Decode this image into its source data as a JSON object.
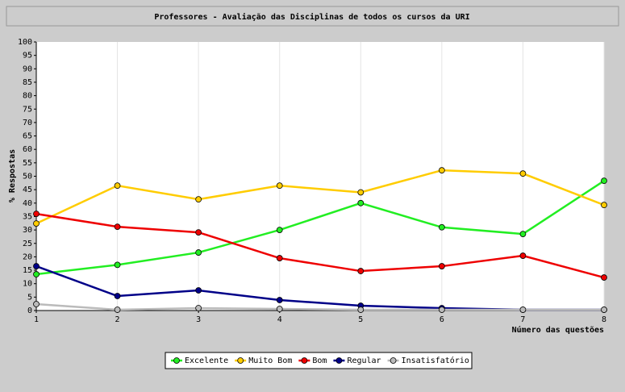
{
  "chart_data": {
    "type": "line",
    "title": "Professores - Avaliação das Disciplinas de todos os cursos da URI",
    "x_label": "Número das questões",
    "y_label": "% Respostas",
    "x": [
      1,
      2,
      3,
      4,
      5,
      6,
      7,
      8
    ],
    "xlim": [
      1,
      8
    ],
    "xticks": [
      1,
      2,
      3,
      4,
      5,
      6,
      7,
      8
    ],
    "ylim": [
      0,
      100
    ],
    "yticks": [
      0,
      5,
      10,
      15,
      20,
      25,
      30,
      35,
      40,
      45,
      50,
      55,
      60,
      65,
      70,
      75,
      80,
      85,
      90,
      95,
      100
    ],
    "grid": true,
    "legend": "bottom",
    "series": [
      {
        "name": "Excelente",
        "color": "#22ee22",
        "values": [
          13.5,
          17,
          21.6,
          30,
          40,
          31,
          28.5,
          48.3
        ]
      },
      {
        "name": "Muito Bom",
        "color": "#ffcc00",
        "values": [
          32.4,
          46.5,
          41.4,
          46.5,
          44,
          52.2,
          51,
          39.3
        ]
      },
      {
        "name": "Bom",
        "color": "#ee0000",
        "values": [
          36,
          31.2,
          29.1,
          19.5,
          14.7,
          16.5,
          20.4,
          12.3
        ]
      },
      {
        "name": "Regular",
        "color": "#000088",
        "values": [
          16.5,
          5.4,
          7.5,
          3.9,
          1.8,
          0.9,
          0.3,
          0.3
        ]
      },
      {
        "name": "Insatisfatório",
        "color": "#bbbbbb",
        "values": [
          2.4,
          0.3,
          0.9,
          0.6,
          0.3,
          0.3,
          0.3,
          0.3
        ]
      }
    ]
  }
}
